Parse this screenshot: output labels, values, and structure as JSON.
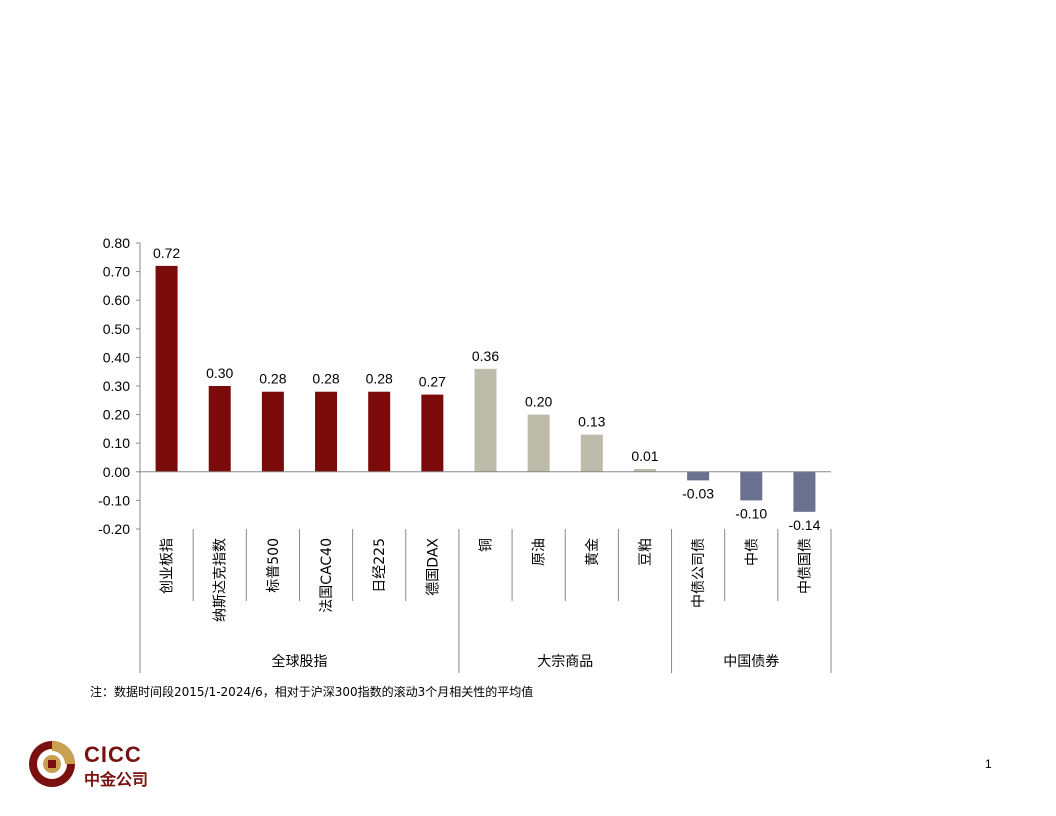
{
  "chart_data": {
    "type": "bar",
    "categories": [
      "创业板指",
      "纳斯达克指数",
      "标普500",
      "法国CAC40",
      "日经225",
      "德国DAX",
      "铜",
      "原油",
      "黄金",
      "豆粕",
      "中债公司债",
      "中债",
      "中债国债"
    ],
    "values": [
      0.72,
      0.3,
      0.28,
      0.28,
      0.28,
      0.27,
      0.36,
      0.2,
      0.13,
      0.01,
      -0.03,
      -0.1,
      -0.14
    ],
    "data_labels": [
      "0.72",
      "0.30",
      "0.28",
      "0.28",
      "0.28",
      "0.27",
      "0.36",
      "0.20",
      "0.13",
      "0.01",
      "-0.03",
      "-0.10",
      "-0.14"
    ],
    "groups": [
      {
        "label": "全球股指",
        "start": 0,
        "end": 5,
        "color": "#7b0a0a"
      },
      {
        "label": "大宗商品",
        "start": 6,
        "end": 9,
        "color": "#bdbcaa"
      },
      {
        "label": "中国债券",
        "start": 10,
        "end": 12,
        "color": "#6a7190"
      }
    ],
    "ylim": [
      -0.2,
      0.8
    ],
    "yticks": [
      "0.80",
      "0.70",
      "0.60",
      "0.50",
      "0.40",
      "0.30",
      "0.20",
      "0.10",
      "0.00",
      "-0.10",
      "-0.20"
    ],
    "ytick_values": [
      0.8,
      0.7,
      0.6,
      0.5,
      0.4,
      0.3,
      0.2,
      0.1,
      0.0,
      -0.1,
      -0.2
    ],
    "title": "",
    "xlabel": "",
    "ylabel": "",
    "grid": false,
    "legend": "none"
  },
  "footnote": "注：数据时间段2015/1-2024/6，相对于沪深300指数的滚动3个月相关性的平均值",
  "logo": {
    "en": "CICC",
    "cn": "中金公司"
  },
  "page_number": "1"
}
